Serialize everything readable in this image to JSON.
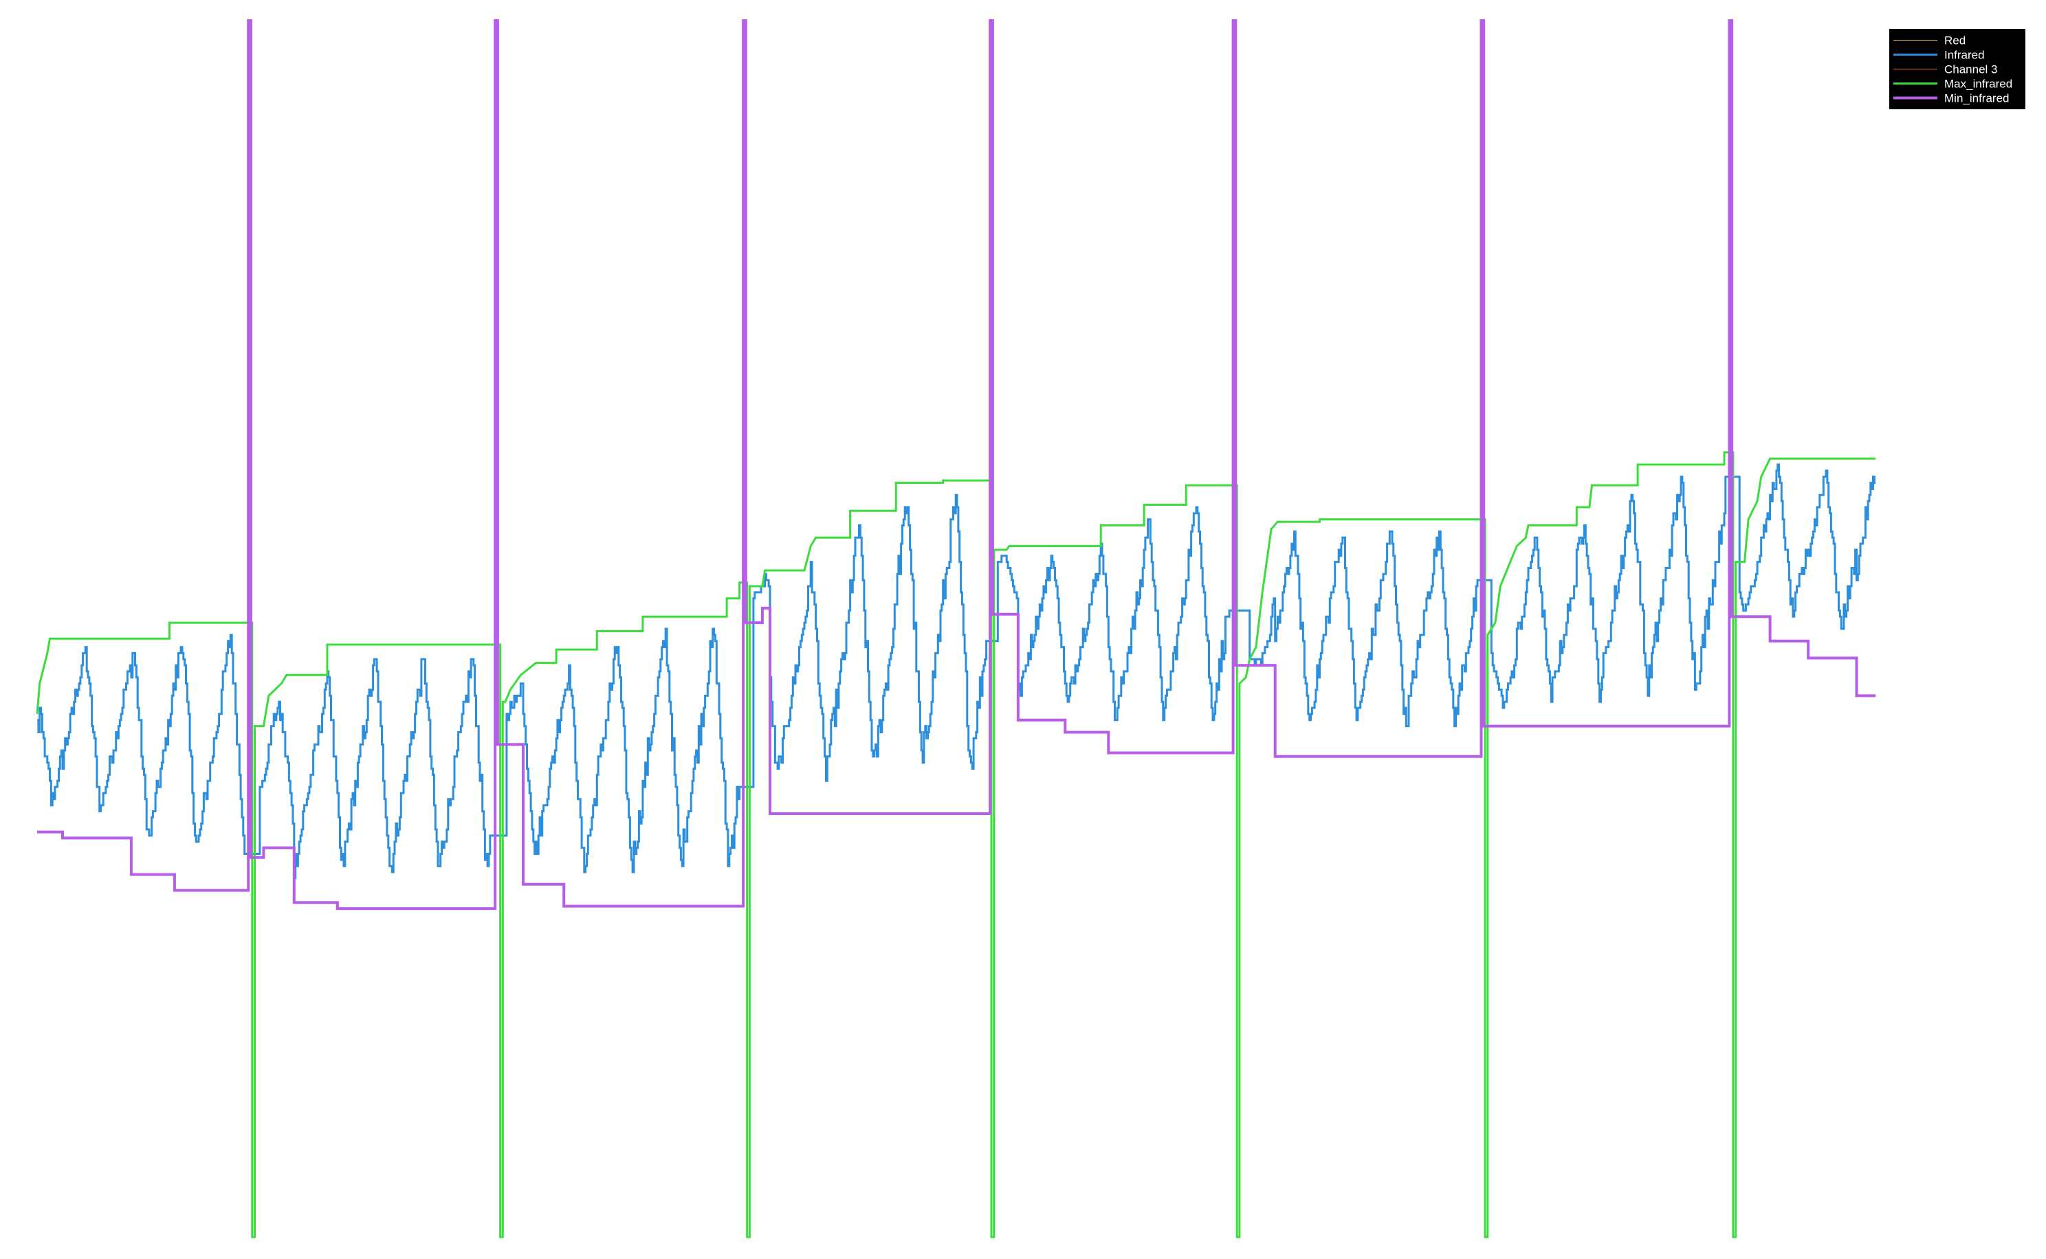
{
  "chart_data": {
    "type": "line",
    "title": "",
    "xlabel": "",
    "ylabel": "",
    "ylim": [
      0,
      1
    ],
    "xlim": [
      0,
      1500
    ],
    "grid": false,
    "axes_visible": false,
    "legend_placement": "top-right",
    "legend_background": "#000000",
    "background": "#ffffff",
    "series": [
      {
        "name": "Red",
        "color": "#e0c040",
        "stroke_width": 1,
        "values": []
      },
      {
        "name": "Infrared",
        "color": "#2b8fde",
        "stroke_width": 3,
        "values": []
      },
      {
        "name": "Channel 3",
        "color": "#e07030",
        "stroke_width": 1,
        "values": []
      },
      {
        "name": "Max_infrared",
        "color": "#3ddc3d",
        "stroke_width": 3,
        "points": [
          [
            0,
            0.43
          ],
          [
            2,
            0.455
          ],
          [
            8,
            0.48
          ],
          [
            10,
            0.492
          ],
          [
            104,
            0.492
          ],
          [
            104,
            0.505
          ],
          [
            169,
            0.505
          ],
          [
            169,
            -0.02
          ],
          [
            171,
            -0.02
          ],
          [
            171,
            0.42
          ],
          [
            173,
            0.42
          ],
          [
            178,
            0.42
          ],
          [
            182,
            0.445
          ],
          [
            192,
            0.455
          ],
          [
            196,
            0.462
          ],
          [
            228,
            0.462
          ],
          [
            228,
            0.487
          ],
          [
            364,
            0.487
          ],
          [
            364,
            -0.02
          ],
          [
            366,
            -0.02
          ],
          [
            366,
            0.44
          ],
          [
            368,
            0.44
          ],
          [
            372,
            0.45
          ],
          [
            380,
            0.462
          ],
          [
            392,
            0.472
          ],
          [
            408,
            0.472
          ],
          [
            408,
            0.483
          ],
          [
            440,
            0.483
          ],
          [
            440,
            0.498
          ],
          [
            476,
            0.498
          ],
          [
            476,
            0.51
          ],
          [
            542,
            0.51
          ],
          [
            542,
            0.525
          ],
          [
            552,
            0.525
          ],
          [
            552,
            0.538
          ],
          [
            558,
            0.538
          ],
          [
            558,
            -0.02
          ],
          [
            560,
            -0.02
          ],
          [
            560,
            0.535
          ],
          [
            570,
            0.535
          ],
          [
            572,
            0.548
          ],
          [
            603,
            0.548
          ],
          [
            608,
            0.568
          ],
          [
            612,
            0.575
          ],
          [
            639,
            0.575
          ],
          [
            639,
            0.597
          ],
          [
            675,
            0.597
          ],
          [
            675,
            0.62
          ],
          [
            712,
            0.62
          ],
          [
            712,
            0.622
          ],
          [
            750,
            0.622
          ],
          [
            750,
            -0.02
          ],
          [
            752,
            -0.02
          ],
          [
            752,
            0.565
          ],
          [
            762,
            0.565
          ],
          [
            764,
            0.568
          ],
          [
            836,
            0.568
          ],
          [
            836,
            0.585
          ],
          [
            870,
            0.585
          ],
          [
            870,
            0.602
          ],
          [
            903,
            0.602
          ],
          [
            903,
            0.618
          ],
          [
            943,
            0.618
          ],
          [
            943,
            -0.02
          ],
          [
            945,
            -0.02
          ],
          [
            945,
            0.455
          ],
          [
            950,
            0.46
          ],
          [
            953,
            0.475
          ],
          [
            958,
            0.485
          ],
          [
            963,
            0.53
          ],
          [
            970,
            0.582
          ],
          [
            975,
            0.588
          ],
          [
            1008,
            0.588
          ],
          [
            1008,
            0.59
          ],
          [
            1138,
            0.59
          ],
          [
            1138,
            -0.02
          ],
          [
            1140,
            -0.02
          ],
          [
            1140,
            0.495
          ],
          [
            1146,
            0.505
          ],
          [
            1150,
            0.535
          ],
          [
            1163,
            0.568
          ],
          [
            1170,
            0.575
          ],
          [
            1172,
            0.585
          ],
          [
            1210,
            0.585
          ],
          [
            1210,
            0.6
          ],
          [
            1220,
            0.6
          ],
          [
            1222,
            0.618
          ],
          [
            1258,
            0.618
          ],
          [
            1258,
            0.635
          ],
          [
            1326,
            0.635
          ],
          [
            1326,
            0.645
          ],
          [
            1333,
            0.645
          ],
          [
            1333,
            -0.02
          ],
          [
            1335,
            -0.02
          ],
          [
            1335,
            0.555
          ],
          [
            1342,
            0.555
          ],
          [
            1345,
            0.59
          ],
          [
            1352,
            0.605
          ],
          [
            1355,
            0.625
          ],
          [
            1362,
            0.64
          ],
          [
            1445,
            0.64
          ]
        ]
      },
      {
        "name": "Min_infrared",
        "color": "#b65ee8",
        "stroke_width": 4,
        "points": [
          [
            0,
            0.333
          ],
          [
            20,
            0.333
          ],
          [
            20,
            0.328
          ],
          [
            74,
            0.328
          ],
          [
            74,
            0.298
          ],
          [
            108,
            0.298
          ],
          [
            108,
            0.285
          ],
          [
            166,
            0.285
          ],
          [
            166,
            1.02
          ],
          [
            168,
            1.02
          ],
          [
            168,
            0.312
          ],
          [
            178,
            0.312
          ],
          [
            178,
            0.32
          ],
          [
            202,
            0.32
          ],
          [
            202,
            0.275
          ],
          [
            236,
            0.275
          ],
          [
            236,
            0.27
          ],
          [
            360,
            0.27
          ],
          [
            360,
            1.02
          ],
          [
            362,
            1.02
          ],
          [
            362,
            0.405
          ],
          [
            382,
            0.405
          ],
          [
            382,
            0.29
          ],
          [
            414,
            0.29
          ],
          [
            414,
            0.272
          ],
          [
            555,
            0.272
          ],
          [
            555,
            1.02
          ],
          [
            557,
            1.02
          ],
          [
            557,
            0.505
          ],
          [
            570,
            0.505
          ],
          [
            570,
            0.517
          ],
          [
            576,
            0.517
          ],
          [
            576,
            0.348
          ],
          [
            749,
            0.348
          ],
          [
            749,
            1.02
          ],
          [
            751,
            1.02
          ],
          [
            751,
            0.512
          ],
          [
            771,
            0.512
          ],
          [
            771,
            0.425
          ],
          [
            808,
            0.425
          ],
          [
            808,
            0.415
          ],
          [
            842,
            0.415
          ],
          [
            842,
            0.398
          ],
          [
            940,
            0.398
          ],
          [
            940,
            1.02
          ],
          [
            942,
            1.02
          ],
          [
            942,
            0.47
          ],
          [
            973,
            0.47
          ],
          [
            973,
            0.395
          ],
          [
            1135,
            0.395
          ],
          [
            1135,
            1.02
          ],
          [
            1137,
            1.02
          ],
          [
            1137,
            0.42
          ],
          [
            1330,
            0.42
          ],
          [
            1330,
            1.02
          ],
          [
            1332,
            1.02
          ],
          [
            1332,
            0.51
          ],
          [
            1362,
            0.51
          ],
          [
            1362,
            0.49
          ],
          [
            1392,
            0.49
          ],
          [
            1392,
            0.476
          ],
          [
            1430,
            0.476
          ],
          [
            1430,
            0.445
          ],
          [
            1445,
            0.445
          ]
        ]
      }
    ]
  }
}
